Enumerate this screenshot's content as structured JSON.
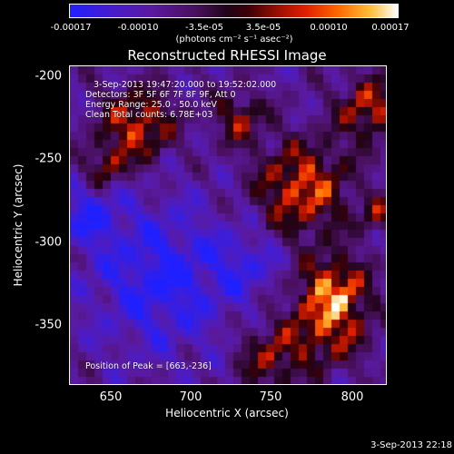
{
  "colorbar": {
    "tick_labels": [
      "-0.00017",
      "-0.00010",
      "-3.5e-05",
      "3.5e-05",
      "0.00010",
      "0.00017"
    ],
    "units": "(photons cm⁻² s⁻¹ asec⁻²)"
  },
  "title": "Reconstructed RHESSI Image",
  "annotations": {
    "time_range": "3-Sep-2013 19:47:20.000 to 19:52:02.000",
    "detectors": "Detectors: 3F 5F 6F 7F 8F 9F, Att 0",
    "energy": "Energy Range: 25.0 - 50.0 keV",
    "clean": "Clean    Total counts: 6.78E+03",
    "peak": "Position of Peak = [663,-236]"
  },
  "axes": {
    "xlabel": "Heliocentric X (arcsec)",
    "ylabel": "Heliocentric Y (arcsec)",
    "x_ticks": [
      "650",
      "700",
      "750",
      "800"
    ],
    "y_ticks": [
      "-200",
      "-250",
      "-300",
      "-350"
    ]
  },
  "footer": "3-Sep-2013 22:18"
}
